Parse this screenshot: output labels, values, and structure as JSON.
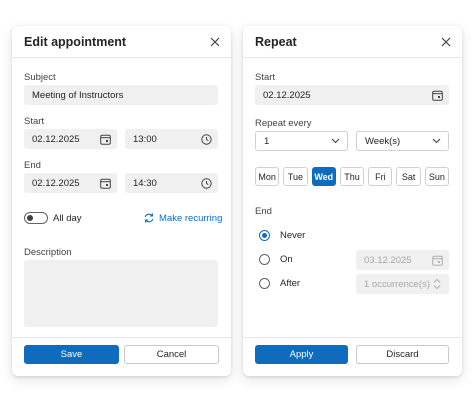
{
  "edit": {
    "title": "Edit appointment",
    "subject_label": "Subject",
    "subject_value": "Meeting of Instructors",
    "start_label": "Start",
    "start_date": "02.12.2025",
    "start_time": "13:00",
    "end_label": "End",
    "end_date": "02.12.2025",
    "end_time": "14:30",
    "allday_label": "All day",
    "allday_on": false,
    "recurring_label": "Make recurring",
    "description_label": "Description",
    "save_label": "Save",
    "cancel_label": "Cancel"
  },
  "repeat": {
    "title": "Repeat",
    "start_label": "Start",
    "start_date": "02.12.2025",
    "every_label": "Repeat every",
    "every_value": "1",
    "unit_value": "Week(s)",
    "days": [
      "Mon",
      "Tue",
      "Wed",
      "Thu",
      "Fri",
      "Sat",
      "Sun"
    ],
    "selected_day": "Wed",
    "end_label": "End",
    "never_label": "Never",
    "on_label": "On",
    "on_date": "03.12.2025",
    "after_label": "After",
    "after_value": "1 occurrence(s)",
    "selected_end": "Never",
    "apply_label": "Apply",
    "discard_label": "Discard"
  },
  "colors": {
    "accent": "#0f6cbd",
    "field_bg": "#f0f0f0"
  },
  "icons": [
    "close-icon",
    "calendar-icon",
    "clock-icon",
    "recurring-icon",
    "chevron-down-icon"
  ]
}
